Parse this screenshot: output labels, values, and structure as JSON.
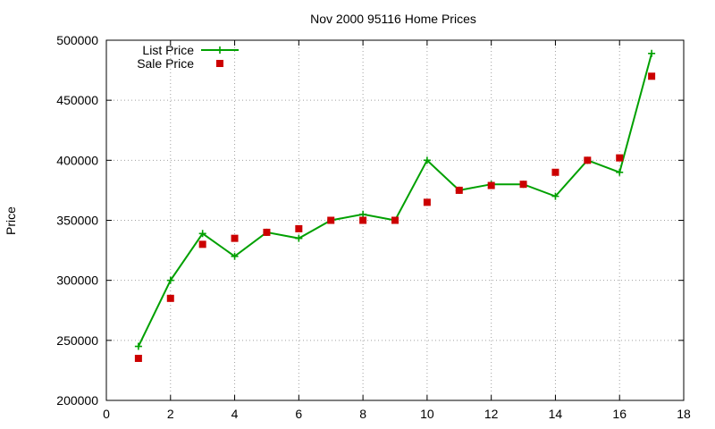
{
  "chart_data": {
    "type": "line",
    "title": "Nov 2000 95116 Home Prices",
    "xlabel": "",
    "ylabel": "Price",
    "xlim": [
      0,
      18
    ],
    "ylim": [
      200000,
      500000
    ],
    "xticks": [
      "0",
      "2",
      "4",
      "6",
      "8",
      "10",
      "12",
      "14",
      "16",
      "18"
    ],
    "yticks": [
      "200000",
      "250000",
      "300000",
      "350000",
      "400000",
      "450000",
      "500000"
    ],
    "grid": true,
    "legend_position": "top-left",
    "series": [
      {
        "name": "List Price",
        "kind": "line+markers",
        "marker": "plus",
        "color": "#00a000",
        "x": [
          1,
          2,
          3,
          4,
          5,
          6,
          7,
          8,
          9,
          10,
          11,
          12,
          13,
          14,
          15,
          16,
          17
        ],
        "values": [
          245000,
          300000,
          339000,
          320000,
          340000,
          335000,
          350000,
          355000,
          350000,
          400000,
          375000,
          380000,
          380000,
          370000,
          400000,
          390000,
          489000
        ]
      },
      {
        "name": "Sale Price",
        "kind": "points",
        "marker": "square",
        "color": "#cc0000",
        "x": [
          1,
          2,
          3,
          4,
          5,
          6,
          7,
          8,
          9,
          10,
          11,
          12,
          13,
          14,
          15,
          16,
          17
        ],
        "values": [
          235000,
          285000,
          330000,
          335000,
          340000,
          343000,
          350000,
          350000,
          350000,
          365000,
          375000,
          379000,
          380000,
          390000,
          400000,
          402000,
          470000
        ]
      }
    ]
  }
}
